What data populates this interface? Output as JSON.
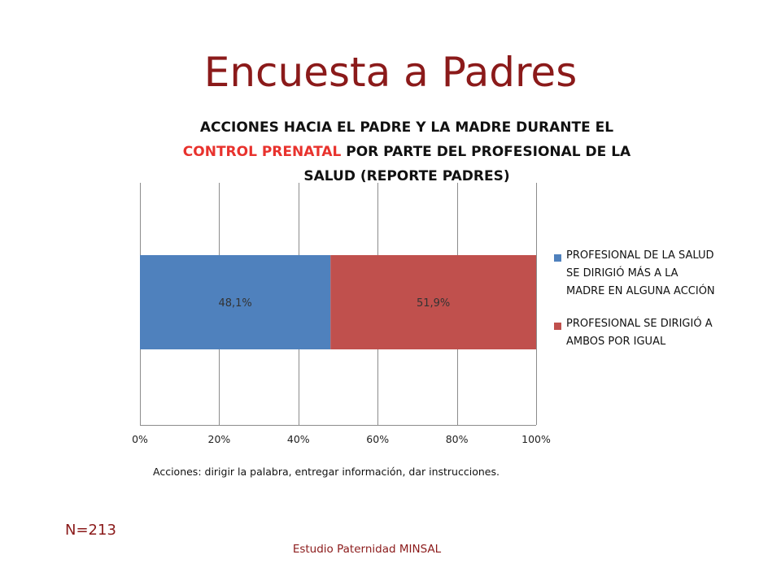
{
  "slide": {
    "title": "Encuesta a Padres",
    "note": "Acciones:  dirigir la palabra, entregar información, dar instrucciones.",
    "sample_size": "N=213",
    "footer": "Estudio Paternidad MINSAL"
  },
  "chart_data": {
    "type": "bar",
    "orientation": "horizontal",
    "stacked": true,
    "title_parts": [
      {
        "text": "ACCIONES HACIA EL PADRE Y LA MADRE DURANTE EL ",
        "highlight": false
      },
      {
        "text": "CONTROL PRENATAL",
        "highlight": true
      },
      {
        "text": " POR PARTE DEL PROFESIONAL DE LA SALUD (REPORTE PADRES)",
        "highlight": false
      }
    ],
    "title_color": "#111111",
    "highlight_color": "#e8322d",
    "categories": [
      ""
    ],
    "series": [
      {
        "name": "PROFESIONAL  DE LA SALUD SE DIRIGIÓ MÁS A LA MADRE EN ALGUNA ACCIÓN",
        "values": [
          48.1
        ],
        "label": "48,1%",
        "color": "#4f81bd"
      },
      {
        "name": "PROFESIONAL SE DIRIGIÓ A AMBOS POR IGUAL",
        "values": [
          51.9
        ],
        "label": "51,9%",
        "color": "#c0504d"
      }
    ],
    "xlim": [
      0,
      100
    ],
    "x_ticks": [
      {
        "value": 0,
        "label": "0%"
      },
      {
        "value": 20,
        "label": "20%"
      },
      {
        "value": 40,
        "label": "40%"
      },
      {
        "value": 60,
        "label": "60%"
      },
      {
        "value": 80,
        "label": "80%"
      },
      {
        "value": 100,
        "label": "100%"
      }
    ],
    "grid": true,
    "legend_position": "right"
  }
}
